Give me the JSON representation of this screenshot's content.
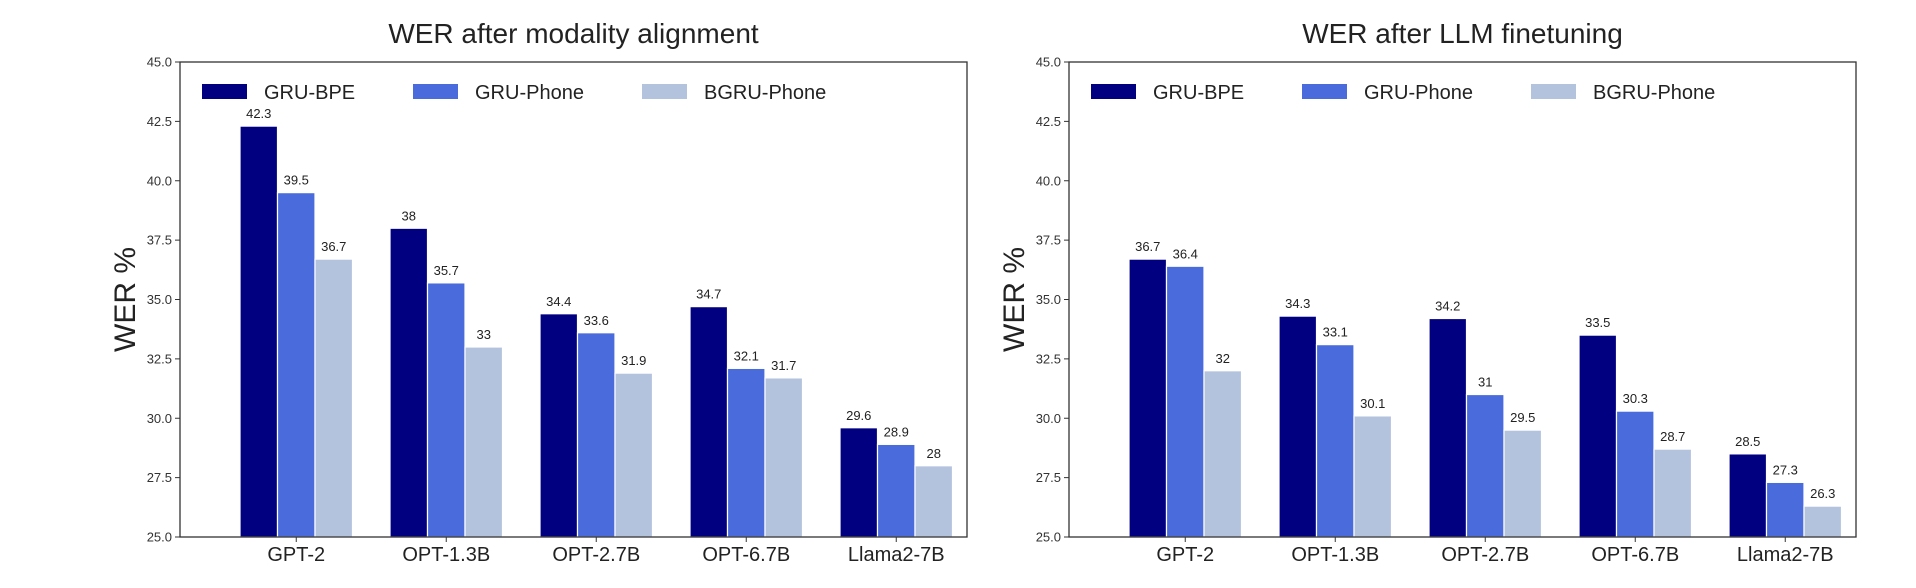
{
  "chart_data": [
    {
      "type": "bar",
      "title": "WER after modality alignment",
      "ylabel": "WER %",
      "xlabel": "",
      "ylim": [
        25.0,
        45.0
      ],
      "yticks": [
        "25.0",
        "27.5",
        "30.0",
        "32.5",
        "35.0",
        "37.5",
        "40.0",
        "42.5",
        "45.0"
      ],
      "grid": false,
      "legend_position": "top",
      "categories": [
        "GPT-2",
        "OPT-1.3B",
        "OPT-2.7B",
        "OPT-6.7B",
        "Llama2-7B"
      ],
      "series": [
        {
          "name": "GRU-BPE",
          "color": "#000080",
          "values": [
            42.3,
            38,
            34.4,
            34.7,
            29.6
          ],
          "labels": [
            "42.3",
            "38",
            "34.4",
            "34.7",
            "29.6"
          ]
        },
        {
          "name": "GRU-Phone",
          "color": "#4a6bdc",
          "values": [
            39.5,
            35.7,
            33.6,
            32.1,
            28.9
          ],
          "labels": [
            "39.5",
            "35.7",
            "33.6",
            "32.1",
            "28.9"
          ]
        },
        {
          "name": "BGRU-Phone",
          "color": "#b3c3de",
          "values": [
            36.7,
            33,
            31.9,
            31.7,
            28
          ],
          "labels": [
            "36.7",
            "33",
            "31.9",
            "31.7",
            "28"
          ]
        }
      ]
    },
    {
      "type": "bar",
      "title": "WER after LLM finetuning",
      "ylabel": "WER %",
      "xlabel": "",
      "ylim": [
        25.0,
        45.0
      ],
      "yticks": [
        "25.0",
        "27.5",
        "30.0",
        "32.5",
        "35.0",
        "37.5",
        "40.0",
        "42.5",
        "45.0"
      ],
      "grid": false,
      "legend_position": "top",
      "categories": [
        "GPT-2",
        "OPT-1.3B",
        "OPT-2.7B",
        "OPT-6.7B",
        "Llama2-7B"
      ],
      "series": [
        {
          "name": "GRU-BPE",
          "color": "#000080",
          "values": [
            36.7,
            34.3,
            34.2,
            33.5,
            28.5
          ],
          "labels": [
            "36.7",
            "34.3",
            "34.2",
            "33.5",
            "28.5"
          ]
        },
        {
          "name": "GRU-Phone",
          "color": "#4a6bdc",
          "values": [
            36.4,
            33.1,
            31,
            30.3,
            27.3
          ],
          "labels": [
            "36.4",
            "33.1",
            "31",
            "30.3",
            "27.3"
          ]
        },
        {
          "name": "BGRU-Phone",
          "color": "#b3c3de",
          "values": [
            32,
            30.1,
            29.5,
            28.7,
            26.3
          ],
          "labels": [
            "32",
            "30.1",
            "29.5",
            "28.7",
            "26.3"
          ]
        }
      ]
    }
  ]
}
